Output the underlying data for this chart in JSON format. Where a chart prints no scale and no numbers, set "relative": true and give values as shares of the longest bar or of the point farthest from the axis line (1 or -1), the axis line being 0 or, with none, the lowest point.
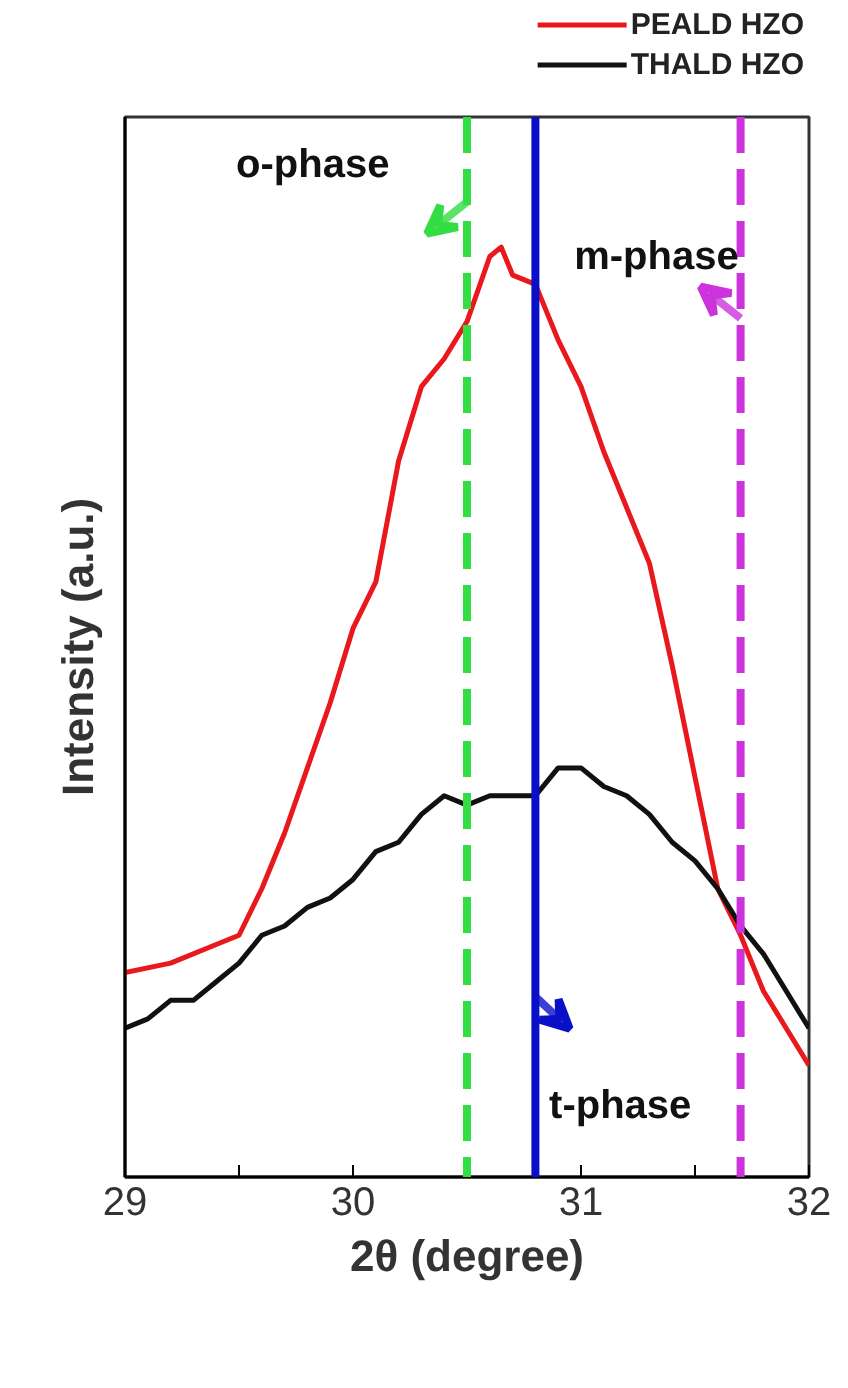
{
  "chart_data": {
    "type": "line",
    "relative": true,
    "xlabel": "2θ (degree)",
    "ylabel": "Intensity (a.u.)",
    "xlim": [
      29,
      32
    ],
    "xticks": [
      29,
      {
        "value": 29.5,
        "label": null
      },
      30,
      {
        "value": 30.5,
        "label": null
      },
      31,
      {
        "value": 31.5,
        "label": null
      },
      32
    ],
    "grid": false,
    "legend": "top right",
    "tick_labels": "x",
    "series": [
      {
        "name": "PEALD HZO",
        "color": "#e8181c",
        "x": [
          29.0,
          29.2,
          29.4,
          29.5,
          29.6,
          29.7,
          29.8,
          29.9,
          30.0,
          30.1,
          30.2,
          30.3,
          30.4,
          30.5,
          30.6,
          30.65,
          30.7,
          30.8,
          30.9,
          31.0,
          31.1,
          31.2,
          31.3,
          31.4,
          31.5,
          31.6,
          31.7,
          31.8,
          31.9,
          32.0
        ],
        "values": [
          0.22,
          0.23,
          0.25,
          0.26,
          0.31,
          0.37,
          0.44,
          0.51,
          0.59,
          0.64,
          0.77,
          0.85,
          0.88,
          0.92,
          0.99,
          1.0,
          0.97,
          0.96,
          0.9,
          0.85,
          0.78,
          0.72,
          0.66,
          0.55,
          0.43,
          0.31,
          0.26,
          0.2,
          0.16,
          0.12
        ]
      },
      {
        "name": "THALD HZO",
        "color": "#111111",
        "x": [
          29.0,
          29.1,
          29.2,
          29.3,
          29.4,
          29.5,
          29.6,
          29.7,
          29.8,
          29.9,
          30.0,
          30.1,
          30.2,
          30.3,
          30.4,
          30.5,
          30.6,
          30.7,
          30.8,
          30.9,
          31.0,
          31.1,
          31.2,
          31.3,
          31.4,
          31.5,
          31.6,
          31.7,
          31.8,
          31.9,
          32.0
        ],
        "values": [
          0.16,
          0.17,
          0.19,
          0.19,
          0.21,
          0.23,
          0.26,
          0.27,
          0.29,
          0.3,
          0.32,
          0.35,
          0.36,
          0.39,
          0.41,
          0.4,
          0.41,
          0.41,
          0.41,
          0.44,
          0.44,
          0.42,
          0.41,
          0.39,
          0.36,
          0.34,
          0.31,
          0.27,
          0.24,
          0.2,
          0.16
        ]
      }
    ],
    "ref_lines": [
      {
        "axis": "x",
        "value": 30.5,
        "label": "o-phase",
        "color": "#33dd44",
        "line_style": "dashed"
      },
      {
        "axis": "x",
        "value": 30.8,
        "label": "t-phase",
        "color": "#0a10c8",
        "line_style": "solid"
      },
      {
        "axis": "x",
        "value": 31.7,
        "label": "m-phase",
        "color": "#cc33dd",
        "line_style": "dashed"
      }
    ]
  }
}
